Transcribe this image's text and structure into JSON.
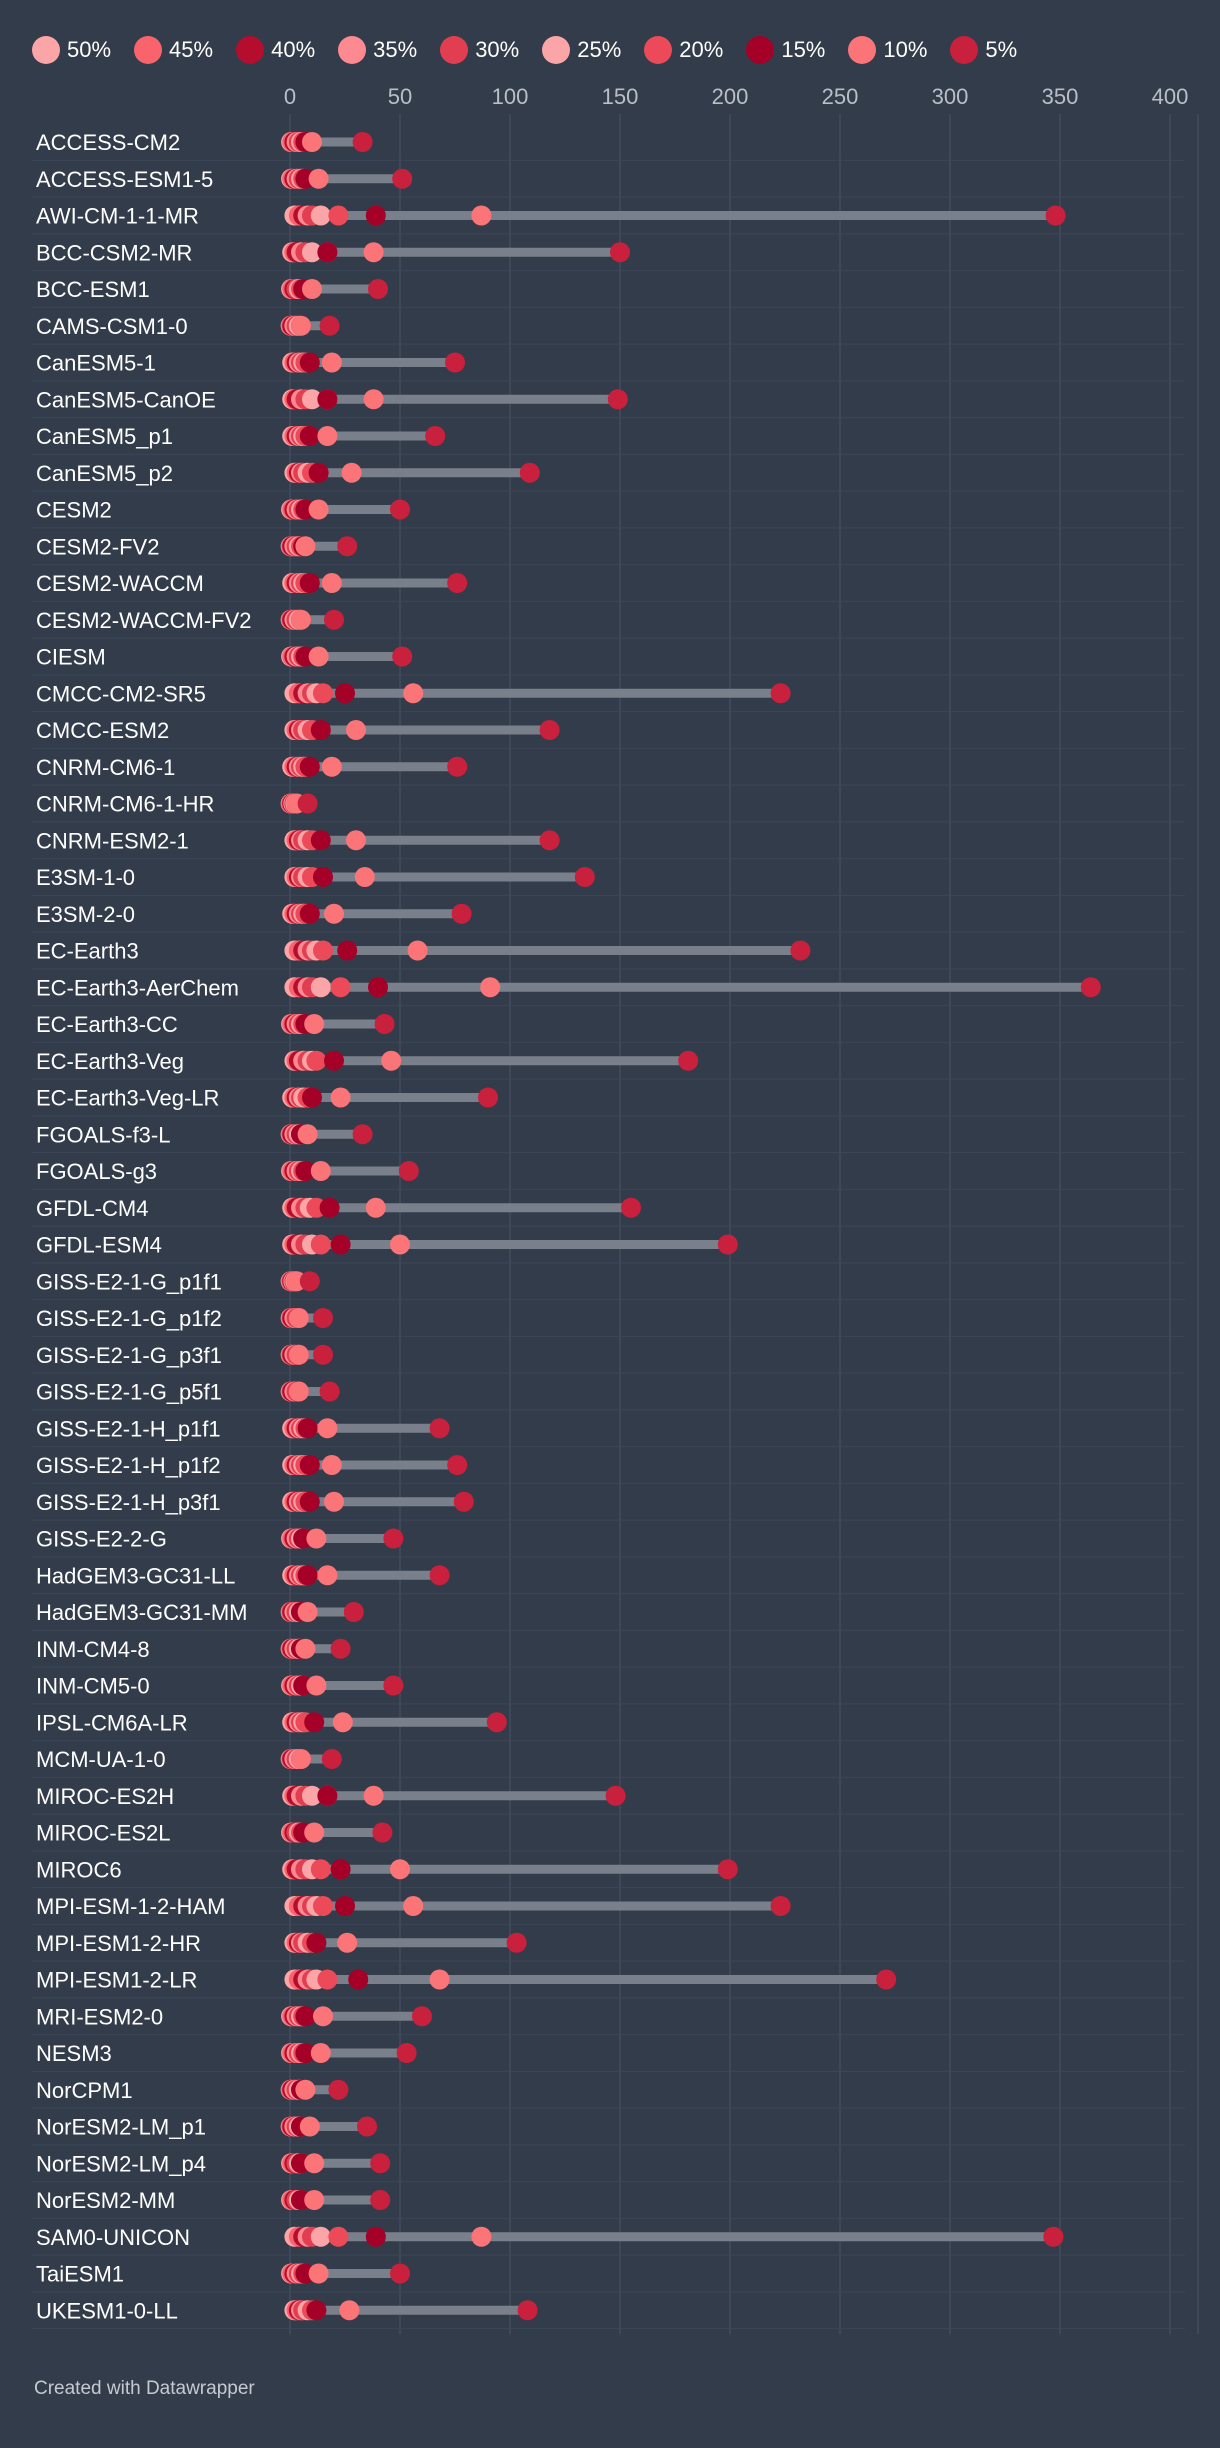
{
  "legend": [
    {
      "label": "50%",
      "color": "#fca5a9"
    },
    {
      "label": "45%",
      "color": "#f9646c"
    },
    {
      "label": "40%",
      "color": "#b50d2e"
    },
    {
      "label": "35%",
      "color": "#fc8a90"
    },
    {
      "label": "30%",
      "color": "#e23e51"
    },
    {
      "label": "25%",
      "color": "#fca5a9"
    },
    {
      "label": "20%",
      "color": "#ec4a58"
    },
    {
      "label": "15%",
      "color": "#a50027"
    },
    {
      "label": "10%",
      "color": "#fb7478"
    },
    {
      "label": "5%",
      "color": "#c8203d"
    }
  ],
  "credit": "Created with Datawrapper",
  "chart_data": {
    "type": "dot_range",
    "title": "",
    "xlabel": "",
    "ylabel": "",
    "xlim": [
      0,
      400
    ],
    "xticks": [
      0,
      50,
      100,
      150,
      200,
      250,
      300,
      350,
      400
    ],
    "grid": true,
    "series_order": [
      "50%",
      "45%",
      "40%",
      "35%",
      "30%",
      "25%",
      "20%",
      "15%",
      "10%",
      "5%"
    ],
    "rows": [
      {
        "name": "ACCESS-CM2",
        "values": [
          0.5,
          1,
          2,
          3,
          4,
          5,
          6,
          7,
          10,
          33
        ]
      },
      {
        "name": "ACCESS-ESM1-5",
        "values": [
          0.5,
          1,
          2,
          3,
          4,
          5,
          6,
          7,
          13,
          51
        ]
      },
      {
        "name": "AWI-CM-1-1-MR",
        "values": [
          2,
          4,
          6,
          8,
          10,
          14,
          22,
          39,
          87,
          348
        ]
      },
      {
        "name": "BCC-CSM2-MR",
        "values": [
          1,
          2,
          3,
          5,
          7,
          10,
          17,
          17,
          38,
          150
        ]
      },
      {
        "name": "BCC-ESM1",
        "values": [
          0.5,
          1,
          2,
          3,
          3,
          4,
          5,
          6,
          10,
          40
        ]
      },
      {
        "name": "CAMS-CSM1-0",
        "values": [
          0.3,
          0.5,
          1,
          2,
          3,
          4,
          5,
          5,
          5,
          18
        ]
      },
      {
        "name": "CanESM5-1",
        "values": [
          1,
          2,
          3,
          4,
          5,
          6,
          7,
          9,
          19,
          75
        ]
      },
      {
        "name": "CanESM5-CanOE",
        "values": [
          1,
          2,
          3,
          5,
          7,
          10,
          17,
          17,
          38,
          149
        ]
      },
      {
        "name": "CanESM5_p1",
        "values": [
          1,
          2,
          3,
          4,
          5,
          6,
          7,
          9,
          17,
          66
        ]
      },
      {
        "name": "CanESM5_p2",
        "values": [
          2,
          3,
          4,
          5,
          6,
          8,
          10,
          13,
          28,
          109
        ]
      },
      {
        "name": "CESM2",
        "values": [
          0.5,
          1,
          2,
          3,
          4,
          5,
          6,
          7,
          13,
          50
        ]
      },
      {
        "name": "CESM2-FV2",
        "values": [
          0.3,
          0.5,
          1,
          2,
          3,
          4,
          5,
          6,
          7,
          26
        ]
      },
      {
        "name": "CESM2-WACCM",
        "values": [
          1,
          2,
          3,
          4,
          5,
          6,
          7,
          9,
          19,
          76
        ]
      },
      {
        "name": "CESM2-WACCM-FV2",
        "values": [
          0.3,
          0.5,
          1,
          2,
          3,
          4,
          5,
          5,
          5,
          20
        ]
      },
      {
        "name": "CIESM",
        "values": [
          0.5,
          1,
          2,
          3,
          4,
          5,
          6,
          7,
          13,
          51
        ]
      },
      {
        "name": "CMCC-CM2-SR5",
        "values": [
          2,
          4,
          6,
          8,
          10,
          12,
          15,
          25,
          56,
          223
        ]
      },
      {
        "name": "CMCC-ESM2",
        "values": [
          2,
          3,
          4,
          5,
          6,
          8,
          10,
          14,
          30,
          118
        ]
      },
      {
        "name": "CNRM-CM6-1",
        "values": [
          1,
          2,
          3,
          4,
          5,
          6,
          7,
          9,
          19,
          76
        ]
      },
      {
        "name": "CNRM-CM6-1-HR",
        "values": [
          0.3,
          0.5,
          1,
          1.5,
          2,
          2.5,
          3,
          3,
          3,
          8
        ]
      },
      {
        "name": "CNRM-ESM2-1",
        "values": [
          2,
          3,
          4,
          5,
          6,
          8,
          10,
          14,
          30,
          118
        ]
      },
      {
        "name": "E3SM-1-0",
        "values": [
          2,
          3,
          4,
          5,
          6,
          8,
          10,
          15,
          34,
          134
        ]
      },
      {
        "name": "E3SM-2-0",
        "values": [
          1,
          2,
          3,
          4,
          5,
          6,
          7,
          9,
          20,
          78
        ]
      },
      {
        "name": "EC-Earth3",
        "values": [
          2,
          4,
          6,
          8,
          10,
          12,
          15,
          26,
          58,
          232
        ]
      },
      {
        "name": "EC-Earth3-AerChem",
        "values": [
          2,
          4,
          6,
          8,
          10,
          14,
          23,
          40,
          91,
          364
        ]
      },
      {
        "name": "EC-Earth3-CC",
        "values": [
          0.5,
          1,
          2,
          3,
          4,
          5,
          6,
          7,
          11,
          43
        ]
      },
      {
        "name": "EC-Earth3-Veg",
        "values": [
          2,
          3,
          4,
          6,
          8,
          10,
          12,
          20,
          46,
          181
        ]
      },
      {
        "name": "EC-Earth3-Veg-LR",
        "values": [
          1,
          2,
          3,
          4,
          5,
          6,
          8,
          10,
          23,
          90
        ]
      },
      {
        "name": "FGOALS-f3-L",
        "values": [
          0.3,
          0.5,
          1,
          2,
          3,
          4,
          5,
          5,
          8,
          33
        ]
      },
      {
        "name": "FGOALS-g3",
        "values": [
          0.5,
          1,
          2,
          3,
          4,
          5,
          6,
          7,
          14,
          54
        ]
      },
      {
        "name": "GFDL-CM4",
        "values": [
          1,
          2,
          3,
          5,
          7,
          9,
          12,
          18,
          39,
          155
        ]
      },
      {
        "name": "GFDL-ESM4",
        "values": [
          1,
          2,
          3,
          5,
          7,
          10,
          14,
          23,
          50,
          199
        ]
      },
      {
        "name": "GISS-E2-1-G_p1f1",
        "values": [
          0.3,
          0.5,
          1,
          1.5,
          2,
          2.5,
          3,
          3,
          3,
          9
        ]
      },
      {
        "name": "GISS-E2-1-G_p1f2",
        "values": [
          0.3,
          0.5,
          1,
          2,
          3,
          4,
          4,
          4,
          4,
          15
        ]
      },
      {
        "name": "GISS-E2-1-G_p3f1",
        "values": [
          0.3,
          0.5,
          1,
          2,
          3,
          4,
          4,
          4,
          4,
          15
        ]
      },
      {
        "name": "GISS-E2-1-G_p5f1",
        "values": [
          0.3,
          0.5,
          1,
          2,
          3,
          4,
          4,
          4,
          4,
          18
        ]
      },
      {
        "name": "GISS-E2-1-H_p1f1",
        "values": [
          1,
          2,
          3,
          4,
          5,
          6,
          7,
          8,
          17,
          68
        ]
      },
      {
        "name": "GISS-E2-1-H_p1f2",
        "values": [
          1,
          2,
          3,
          4,
          5,
          6,
          7,
          9,
          19,
          76
        ]
      },
      {
        "name": "GISS-E2-1-H_p3f1",
        "values": [
          1,
          2,
          3,
          4,
          5,
          6,
          7,
          9,
          20,
          79
        ]
      },
      {
        "name": "GISS-E2-2-G",
        "values": [
          0.5,
          1,
          2,
          3,
          4,
          5,
          6,
          6,
          12,
          47
        ]
      },
      {
        "name": "HadGEM3-GC31-LL",
        "values": [
          1,
          2,
          3,
          4,
          5,
          6,
          7,
          8,
          17,
          68
        ]
      },
      {
        "name": "HadGEM3-GC31-MM",
        "values": [
          0.3,
          0.5,
          1,
          2,
          3,
          4,
          5,
          5,
          8,
          29
        ]
      },
      {
        "name": "INM-CM4-8",
        "values": [
          0.3,
          0.5,
          1,
          2,
          3,
          4,
          5,
          5,
          7,
          23
        ]
      },
      {
        "name": "INM-CM5-0",
        "values": [
          0.5,
          1,
          2,
          3,
          4,
          5,
          6,
          6,
          12,
          47
        ]
      },
      {
        "name": "IPSL-CM6A-LR",
        "values": [
          1,
          2,
          3,
          4,
          5,
          6,
          7,
          11,
          24,
          94
        ]
      },
      {
        "name": "MCM-UA-1-0",
        "values": [
          0.3,
          0.5,
          1,
          2,
          3,
          4,
          5,
          5,
          5,
          19
        ]
      },
      {
        "name": "MIROC-ES2H",
        "values": [
          1,
          2,
          3,
          5,
          7,
          10,
          17,
          17,
          38,
          148
        ]
      },
      {
        "name": "MIROC-ES2L",
        "values": [
          0.5,
          1,
          2,
          3,
          3,
          4,
          5,
          6,
          11,
          42
        ]
      },
      {
        "name": "MIROC6",
        "values": [
          1,
          2,
          3,
          5,
          7,
          10,
          14,
          23,
          50,
          199
        ]
      },
      {
        "name": "MPI-ESM-1-2-HAM",
        "values": [
          2,
          4,
          6,
          8,
          10,
          12,
          15,
          25,
          56,
          223
        ]
      },
      {
        "name": "MPI-ESM1-2-HR",
        "values": [
          2,
          3,
          4,
          5,
          6,
          8,
          10,
          12,
          26,
          103
        ]
      },
      {
        "name": "MPI-ESM1-2-LR",
        "values": [
          2,
          4,
          6,
          8,
          10,
          12,
          17,
          31,
          68,
          271
        ]
      },
      {
        "name": "MRI-ESM2-0",
        "values": [
          0.5,
          1,
          2,
          3,
          4,
          5,
          6,
          7,
          15,
          60
        ]
      },
      {
        "name": "NESM3",
        "values": [
          0.5,
          1,
          2,
          3,
          4,
          5,
          6,
          7,
          14,
          53
        ]
      },
      {
        "name": "NorCPM1",
        "values": [
          0.3,
          0.5,
          1,
          2,
          3,
          4,
          5,
          5,
          7,
          22
        ]
      },
      {
        "name": "NorESM2-LM_p1",
        "values": [
          0.3,
          0.5,
          1,
          2,
          3,
          4,
          5,
          5,
          9,
          35
        ]
      },
      {
        "name": "NorESM2-LM_p4",
        "values": [
          0.5,
          1,
          2,
          3,
          3,
          4,
          5,
          5,
          11,
          41
        ]
      },
      {
        "name": "NorESM2-MM",
        "values": [
          0.5,
          1,
          2,
          3,
          3,
          4,
          5,
          5,
          11,
          41
        ]
      },
      {
        "name": "SAM0-UNICON",
        "values": [
          2,
          4,
          6,
          8,
          10,
          14,
          22,
          39,
          87,
          347
        ]
      },
      {
        "name": "TaiESM1",
        "values": [
          0.5,
          1,
          2,
          3,
          4,
          5,
          6,
          7,
          13,
          50
        ]
      },
      {
        "name": "UKESM1-0-LL",
        "values": [
          2,
          3,
          4,
          5,
          6,
          8,
          10,
          12,
          27,
          108
        ]
      }
    ]
  }
}
